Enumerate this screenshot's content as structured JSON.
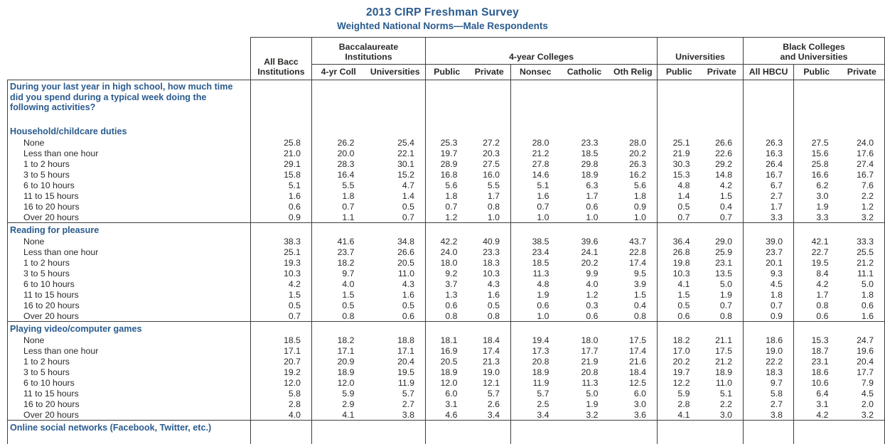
{
  "page": {
    "title": "2013 CIRP Freshman Survey",
    "subtitle": "Weighted National Norms—Male Respondents"
  },
  "colors": {
    "accent_blue": "#2a5b8e",
    "text": "#2b2926",
    "border": "#3e3e3e"
  },
  "table": {
    "header": {
      "all_bacc": "All Bacc\nInstitutions",
      "groups": {
        "baccalaureate": "Baccalaureate\nInstitutions",
        "four_year": "4-year Colleges",
        "universities": "Universities",
        "black_colleges": "Black Colleges\nand Universities"
      },
      "subcolumns": [
        "4-yr Coll",
        "Universities",
        "Public",
        "Private",
        "Nonsec",
        "Catholic",
        "Oth Relig",
        "Public",
        "Private",
        "All HBCU",
        "Public",
        "Private"
      ]
    },
    "question": "During your last year in high school, how much time did you spend during a typical week doing the following activities?",
    "sections": [
      {
        "label": "Household/childcare duties",
        "rows": [
          {
            "label": "None",
            "values": [
              "25.8",
              "26.2",
              "25.4",
              "25.3",
              "27.2",
              "28.0",
              "23.3",
              "28.0",
              "25.1",
              "26.6",
              "26.3",
              "27.5",
              "24.0"
            ]
          },
          {
            "label": "Less than one hour",
            "values": [
              "21.0",
              "20.0",
              "22.1",
              "19.7",
              "20.3",
              "21.2",
              "18.5",
              "20.2",
              "21.9",
              "22.6",
              "16.3",
              "15.6",
              "17.6"
            ]
          },
          {
            "label": "1 to 2 hours",
            "values": [
              "29.1",
              "28.3",
              "30.1",
              "28.9",
              "27.5",
              "27.8",
              "29.8",
              "26.3",
              "30.3",
              "29.2",
              "26.4",
              "25.8",
              "27.4"
            ]
          },
          {
            "label": "3 to 5 hours",
            "values": [
              "15.8",
              "16.4",
              "15.2",
              "16.8",
              "16.0",
              "14.6",
              "18.9",
              "16.2",
              "15.3",
              "14.8",
              "16.7",
              "16.6",
              "16.7"
            ]
          },
          {
            "label": "6 to 10 hours",
            "values": [
              "5.1",
              "5.5",
              "4.7",
              "5.6",
              "5.5",
              "5.1",
              "6.3",
              "5.6",
              "4.8",
              "4.2",
              "6.7",
              "6.2",
              "7.6"
            ]
          },
          {
            "label": "11 to 15 hours",
            "values": [
              "1.6",
              "1.8",
              "1.4",
              "1.8",
              "1.7",
              "1.6",
              "1.7",
              "1.8",
              "1.4",
              "1.5",
              "2.7",
              "3.0",
              "2.2"
            ]
          },
          {
            "label": "16 to 20 hours",
            "values": [
              "0.6",
              "0.7",
              "0.5",
              "0.7",
              "0.8",
              "0.7",
              "0.6",
              "0.9",
              "0.5",
              "0.4",
              "1.7",
              "1.9",
              "1.2"
            ]
          },
          {
            "label": "Over 20 hours",
            "values": [
              "0.9",
              "1.1",
              "0.7",
              "1.2",
              "1.0",
              "1.0",
              "1.0",
              "1.0",
              "0.7",
              "0.7",
              "3.3",
              "3.3",
              "3.2"
            ]
          }
        ]
      },
      {
        "label": "Reading for pleasure",
        "rows": [
          {
            "label": "None",
            "values": [
              "38.3",
              "41.6",
              "34.8",
              "42.2",
              "40.9",
              "38.5",
              "39.6",
              "43.7",
              "36.4",
              "29.0",
              "39.0",
              "42.1",
              "33.3"
            ]
          },
          {
            "label": "Less than one hour",
            "values": [
              "25.1",
              "23.7",
              "26.6",
              "24.0",
              "23.3",
              "23.4",
              "24.1",
              "22.8",
              "26.8",
              "25.9",
              "23.7",
              "22.7",
              "25.5"
            ]
          },
          {
            "label": "1 to 2 hours",
            "values": [
              "19.3",
              "18.2",
              "20.5",
              "18.0",
              "18.3",
              "18.5",
              "20.2",
              "17.4",
              "19.8",
              "23.1",
              "20.1",
              "19.5",
              "21.2"
            ]
          },
          {
            "label": "3 to 5 hours",
            "values": [
              "10.3",
              "9.7",
              "11.0",
              "9.2",
              "10.3",
              "11.3",
              "9.9",
              "9.5",
              "10.3",
              "13.5",
              "9.3",
              "8.4",
              "11.1"
            ]
          },
          {
            "label": "6 to 10 hours",
            "values": [
              "4.2",
              "4.0",
              "4.3",
              "3.7",
              "4.3",
              "4.8",
              "4.0",
              "3.9",
              "4.1",
              "5.0",
              "4.5",
              "4.2",
              "5.0"
            ]
          },
          {
            "label": "11 to 15 hours",
            "values": [
              "1.5",
              "1.5",
              "1.6",
              "1.3",
              "1.6",
              "1.9",
              "1.2",
              "1.5",
              "1.5",
              "1.9",
              "1.8",
              "1.7",
              "1.8"
            ]
          },
          {
            "label": "16 to 20 hours",
            "values": [
              "0.5",
              "0.5",
              "0.5",
              "0.6",
              "0.5",
              "0.6",
              "0.3",
              "0.4",
              "0.5",
              "0.7",
              "0.7",
              "0.8",
              "0.6"
            ]
          },
          {
            "label": "Over 20 hours",
            "values": [
              "0.7",
              "0.8",
              "0.6",
              "0.8",
              "0.8",
              "1.0",
              "0.6",
              "0.8",
              "0.6",
              "0.8",
              "0.9",
              "0.6",
              "1.6"
            ]
          }
        ]
      },
      {
        "label": "Playing video/computer games",
        "rows": [
          {
            "label": "None",
            "values": [
              "18.5",
              "18.2",
              "18.8",
              "18.1",
              "18.4",
              "19.4",
              "18.0",
              "17.5",
              "18.2",
              "21.1",
              "18.6",
              "15.3",
              "24.7"
            ]
          },
          {
            "label": "Less than one hour",
            "values": [
              "17.1",
              "17.1",
              "17.1",
              "16.9",
              "17.4",
              "17.3",
              "17.7",
              "17.4",
              "17.0",
              "17.5",
              "19.0",
              "18.7",
              "19.6"
            ]
          },
          {
            "label": "1 to 2 hours",
            "values": [
              "20.7",
              "20.9",
              "20.4",
              "20.5",
              "21.3",
              "20.8",
              "21.9",
              "21.6",
              "20.2",
              "21.2",
              "22.2",
              "23.1",
              "20.4"
            ]
          },
          {
            "label": "3 to 5 hours",
            "values": [
              "19.2",
              "18.9",
              "19.5",
              "18.9",
              "19.0",
              "18.9",
              "20.8",
              "18.4",
              "19.7",
              "18.9",
              "18.3",
              "18.6",
              "17.7"
            ]
          },
          {
            "label": "6 to 10 hours",
            "values": [
              "12.0",
              "12.0",
              "11.9",
              "12.0",
              "12.1",
              "11.9",
              "11.3",
              "12.5",
              "12.2",
              "11.0",
              "9.7",
              "10.6",
              "7.9"
            ]
          },
          {
            "label": "11 to 15 hours",
            "values": [
              "5.8",
              "5.9",
              "5.7",
              "6.0",
              "5.7",
              "5.7",
              "5.0",
              "6.0",
              "5.9",
              "5.1",
              "5.8",
              "6.4",
              "4.5"
            ]
          },
          {
            "label": "16 to 20 hours",
            "values": [
              "2.8",
              "2.9",
              "2.7",
              "3.1",
              "2.6",
              "2.5",
              "1.9",
              "3.0",
              "2.8",
              "2.2",
              "2.7",
              "3.1",
              "2.0"
            ]
          },
          {
            "label": "Over 20 hours",
            "values": [
              "4.0",
              "4.1",
              "3.8",
              "4.6",
              "3.4",
              "3.4",
              "3.2",
              "3.6",
              "4.1",
              "3.0",
              "3.8",
              "4.2",
              "3.2"
            ]
          }
        ]
      }
    ],
    "partial_next_section": "Online social networks (Facebook, Twitter, etc.)"
  }
}
